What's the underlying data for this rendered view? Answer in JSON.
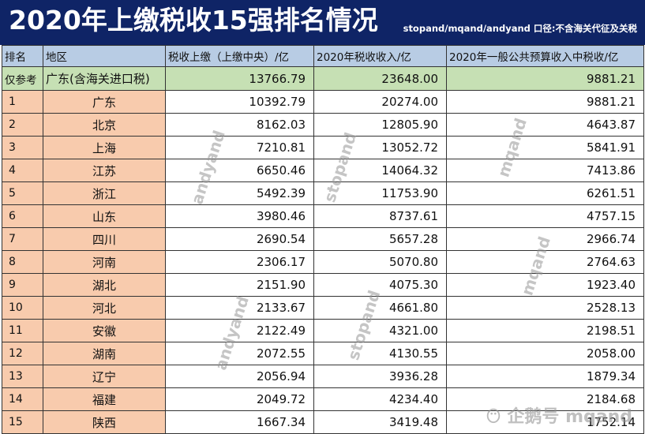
{
  "title": "2020年上缴税收15强排名情况",
  "note": "stopand/mqand/andyand 口径:不含海关代征及关税",
  "headers": [
    "排名",
    "地区",
    "税收上缴（上缴中央）/亿",
    "2020年税收收入/亿",
    "2020年一般公共预算收入中税收/亿"
  ],
  "reference_row": {
    "rank": "仅参考",
    "region": "广东(含海关进口税)",
    "upload": "13766.79",
    "revenue": "23648.00",
    "budget": "9881.21"
  },
  "rows": [
    {
      "rank": "1",
      "region": "广东",
      "upload": "10392.79",
      "revenue": "20274.00",
      "budget": "9881.21"
    },
    {
      "rank": "2",
      "region": "北京",
      "upload": "8162.03",
      "revenue": "12805.90",
      "budget": "4643.87"
    },
    {
      "rank": "3",
      "region": "上海",
      "upload": "7210.81",
      "revenue": "13052.72",
      "budget": "5841.91"
    },
    {
      "rank": "4",
      "region": "江苏",
      "upload": "6650.46",
      "revenue": "14064.32",
      "budget": "7413.86"
    },
    {
      "rank": "5",
      "region": "浙江",
      "upload": "5492.39",
      "revenue": "11753.90",
      "budget": "6261.51"
    },
    {
      "rank": "6",
      "region": "山东",
      "upload": "3980.46",
      "revenue": "8737.61",
      "budget": "4757.15"
    },
    {
      "rank": "7",
      "region": "四川",
      "upload": "2690.54",
      "revenue": "5657.28",
      "budget": "2966.74"
    },
    {
      "rank": "8",
      "region": "河南",
      "upload": "2306.17",
      "revenue": "5070.80",
      "budget": "2764.63"
    },
    {
      "rank": "9",
      "region": "湖北",
      "upload": "2151.90",
      "revenue": "4075.30",
      "budget": "1923.40"
    },
    {
      "rank": "10",
      "region": "河北",
      "upload": "2133.67",
      "revenue": "4661.80",
      "budget": "2528.13"
    },
    {
      "rank": "11",
      "region": "安徽",
      "upload": "2122.49",
      "revenue": "4321.00",
      "budget": "2198.51"
    },
    {
      "rank": "12",
      "region": "湖南",
      "upload": "2072.55",
      "revenue": "4130.55",
      "budget": "2058.00"
    },
    {
      "rank": "13",
      "region": "辽宁",
      "upload": "2056.94",
      "revenue": "3936.28",
      "budget": "1879.34"
    },
    {
      "rank": "14",
      "region": "福建",
      "upload": "2049.72",
      "revenue": "4234.40",
      "budget": "2184.68"
    },
    {
      "rank": "15",
      "region": "陕西",
      "upload": "1667.34",
      "revenue": "3419.48",
      "budget": "1752.14"
    }
  ],
  "watermarks": {
    "andyand": "andyand",
    "stopand": "stopand",
    "mqand": "mqand",
    "logo_text": "企鹅号 mqand"
  },
  "colors": {
    "title_bg": "#0f2466",
    "header_bg": "#b8cce4",
    "reference_bg": "#c6e0b4",
    "rank_bg": "#f8cbad"
  }
}
